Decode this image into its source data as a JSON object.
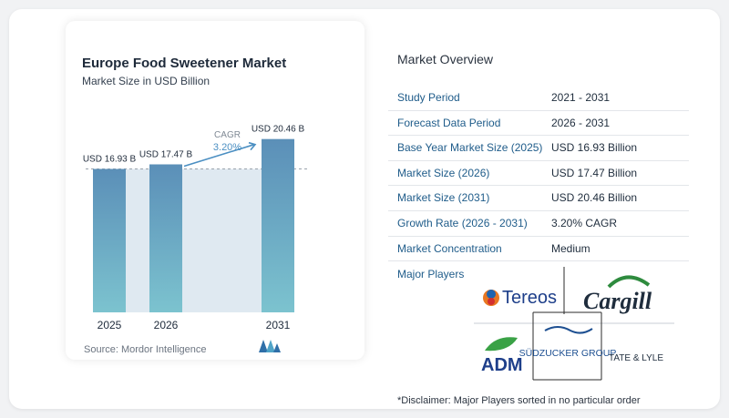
{
  "chart_data": {
    "type": "bar",
    "title": "Europe Food Sweetener Market",
    "subtitle": "Market Size in USD Billion",
    "categories": [
      "2025",
      "2026",
      "2031"
    ],
    "values": [
      16.93,
      17.47,
      20.46
    ],
    "data_labels": [
      "USD 16.93 B",
      "USD 17.47 B",
      "USD 20.46 B"
    ],
    "annotation": {
      "label": "CAGR",
      "value": "3.20%"
    },
    "ylim": [
      0,
      21.5
    ],
    "colors": {
      "bar_top": "#5b8fb8",
      "bar_bottom": "#7cc3cf",
      "band": "#dfe9f1",
      "arrow": "#4b8fc2"
    }
  },
  "source": "Source:  Mordor Intelligence",
  "overview": {
    "title": "Market Overview",
    "rows": [
      {
        "key": "Study Period",
        "value": "2021 - 2031"
      },
      {
        "key": "Forecast Data Period",
        "value": "2026 - 2031"
      },
      {
        "key": "Base Year Market Size (2025)",
        "value": "USD 16.93 Billion"
      },
      {
        "key": "Market Size (2026)",
        "value": "USD 17.47 Billion"
      },
      {
        "key": "Market Size (2031)",
        "value": "USD 20.46 Billion"
      },
      {
        "key": "Growth Rate (2026 - 2031)",
        "value": "3.20% CAGR"
      },
      {
        "key": "Market Concentration",
        "value": "Medium"
      }
    ],
    "major_players_label": "Major Players",
    "players": [
      "Tereos",
      "Cargill",
      "ADM",
      "SÜDZUCKER GROUP",
      "TATE & LYLE"
    ],
    "disclaimer": "*Disclaimer: Major Players sorted in no particular order"
  }
}
